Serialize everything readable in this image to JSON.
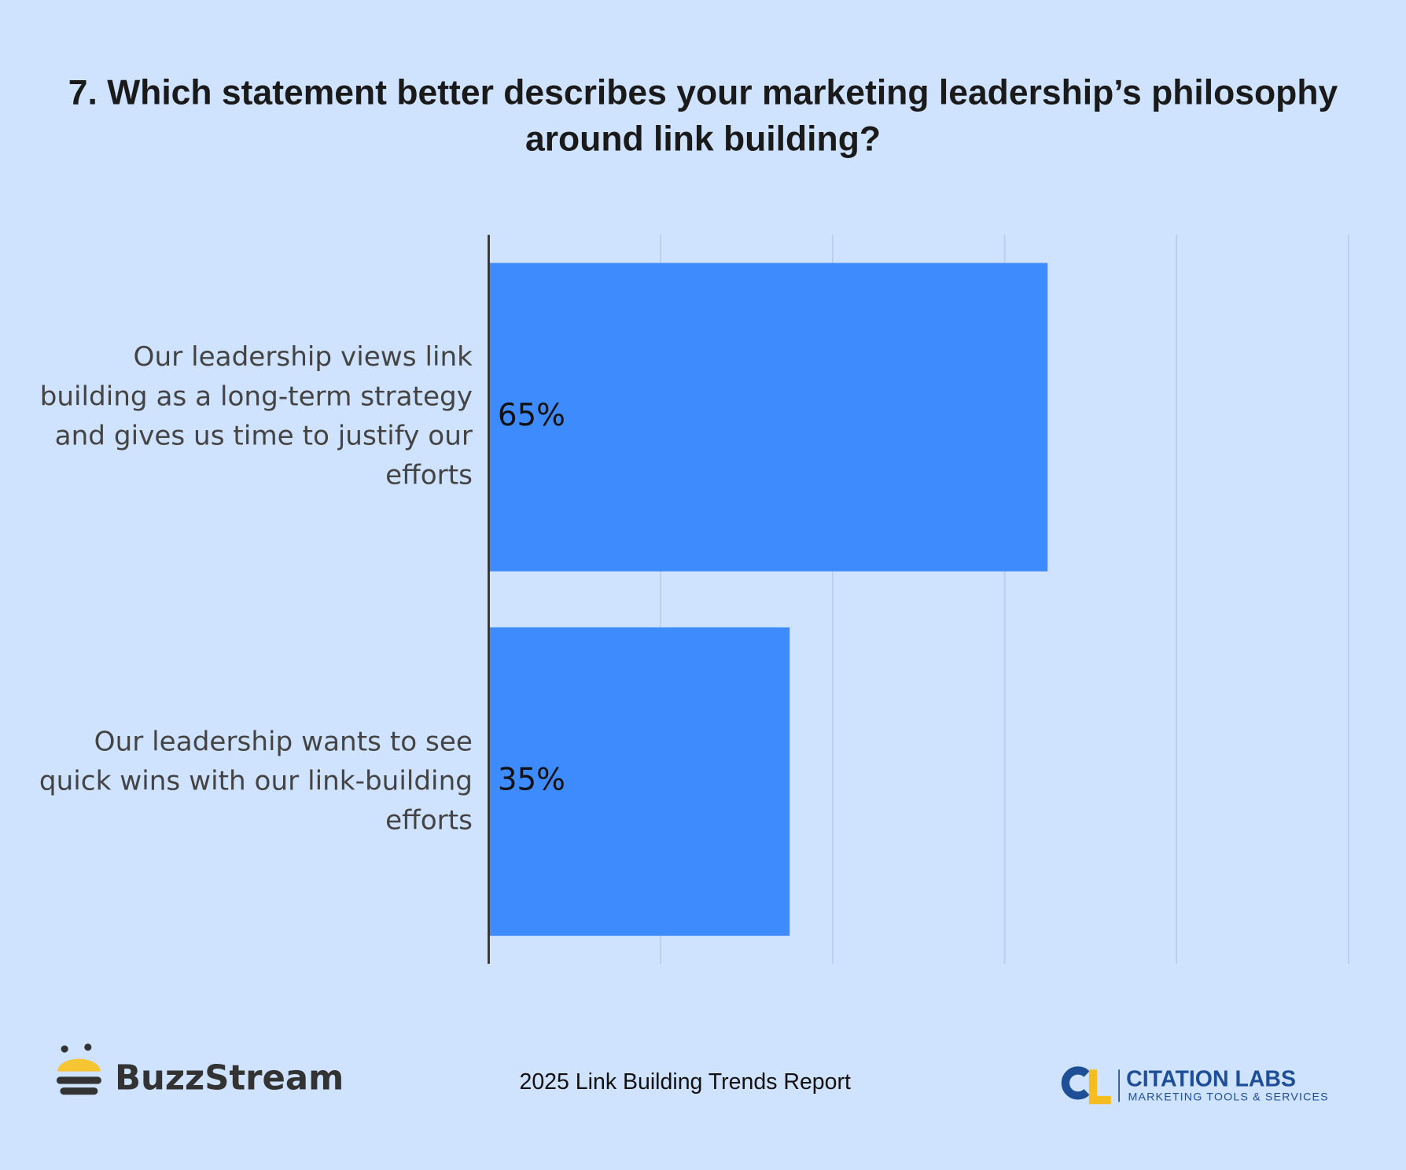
{
  "chart_data": {
    "type": "bar",
    "orientation": "horizontal",
    "title": "7. Which statement better describes your marketing leadership’s philosophy around link building?",
    "categories": [
      "Our leadership views link building as a long-term strategy and gives us time to justify our efforts",
      "Our leadership wants to see quick wins with our link-building efforts"
    ],
    "values": [
      65,
      35
    ],
    "value_labels": [
      "65%",
      "35%"
    ],
    "color": "#3e8bfd",
    "xlim": [
      0,
      100
    ],
    "xticks": [
      0,
      20,
      40,
      60,
      80,
      100
    ],
    "grid": true
  },
  "footer": {
    "brand": "BuzzStream",
    "report": "2025 Link Building Trends Report",
    "partner": "CITATION LABS",
    "partner_tagline": "MARKETING TOOLS & SERVICES"
  }
}
